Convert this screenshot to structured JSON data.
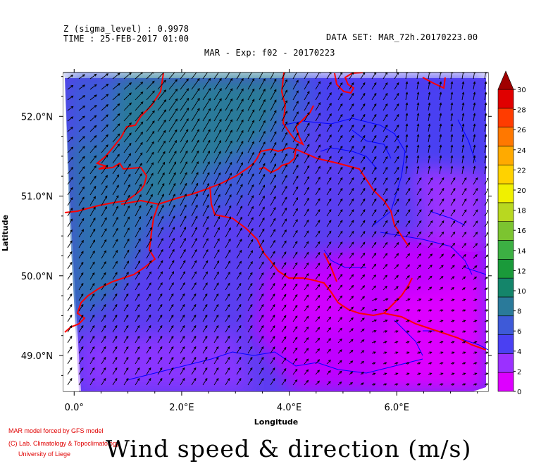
{
  "header": {
    "z_line": "Z (sigma_level) : 0.9978",
    "time_line": "TIME : 25-FEB-2017 01:00",
    "dataset_line": "DATA SET: MAR_72h.20170223.00",
    "subtitle": "MAR - Exp: f02 - 20170223"
  },
  "credits": {
    "line1": "MAR model forced by GFS model",
    "line2": "(C) Lab. Climatology & Topoclimatology",
    "line3": "University of Liege"
  },
  "main_title": "Wind speed & direction (m/s)",
  "colors": {
    "coastline": "#ff0000",
    "borders": "#0000ff",
    "arrows": "#000000"
  },
  "chart_data": {
    "type": "heatmap",
    "title": "Wind speed & direction (m/s)",
    "xlabel": "Longitude",
    "ylabel": "Latitude",
    "xlim": [
      -0.2,
      7.7
    ],
    "ylim": [
      48.55,
      52.55
    ],
    "x_ticks": [
      {
        "value": 0,
        "label": "0.0°"
      },
      {
        "value": 2,
        "label": "2.0°E"
      },
      {
        "value": 4,
        "label": "4.0°E"
      },
      {
        "value": 6,
        "label": "6.0°E"
      }
    ],
    "y_ticks": [
      {
        "value": 49,
        "label": "49.0°N"
      },
      {
        "value": 50,
        "label": "50.0°N"
      },
      {
        "value": 51,
        "label": "51.0°N"
      },
      {
        "value": 52,
        "label": "52.0°N"
      }
    ],
    "colorbar": {
      "min": 0,
      "max": 30,
      "step": 2,
      "labels": [
        "0",
        "2",
        "4",
        "6",
        "8",
        "10",
        "12",
        "14",
        "16",
        "18",
        "20",
        "22",
        "24",
        "26",
        "28",
        "30"
      ],
      "colors": [
        "#dd00ff",
        "#9b30ff",
        "#4a40f2",
        "#3e5ad8",
        "#2a7a9a",
        "#14856a",
        "#1a9a3a",
        "#3cb043",
        "#7cc430",
        "#b8d820",
        "#f0f000",
        "#ffd200",
        "#ffaa00",
        "#ff7800",
        "#ff3c00",
        "#e00000"
      ],
      "overflow_color": "#a00000"
    },
    "grid": false,
    "legend": "colorbar-right",
    "field_regions": [
      {
        "name": "northwest",
        "speed_ms": 8
      },
      {
        "name": "west-central",
        "speed_ms": 6
      },
      {
        "name": "north-central",
        "speed_ms": 4
      },
      {
        "name": "southeast",
        "speed_ms": 1
      }
    ],
    "wind_direction": "from south-southwest"
  }
}
